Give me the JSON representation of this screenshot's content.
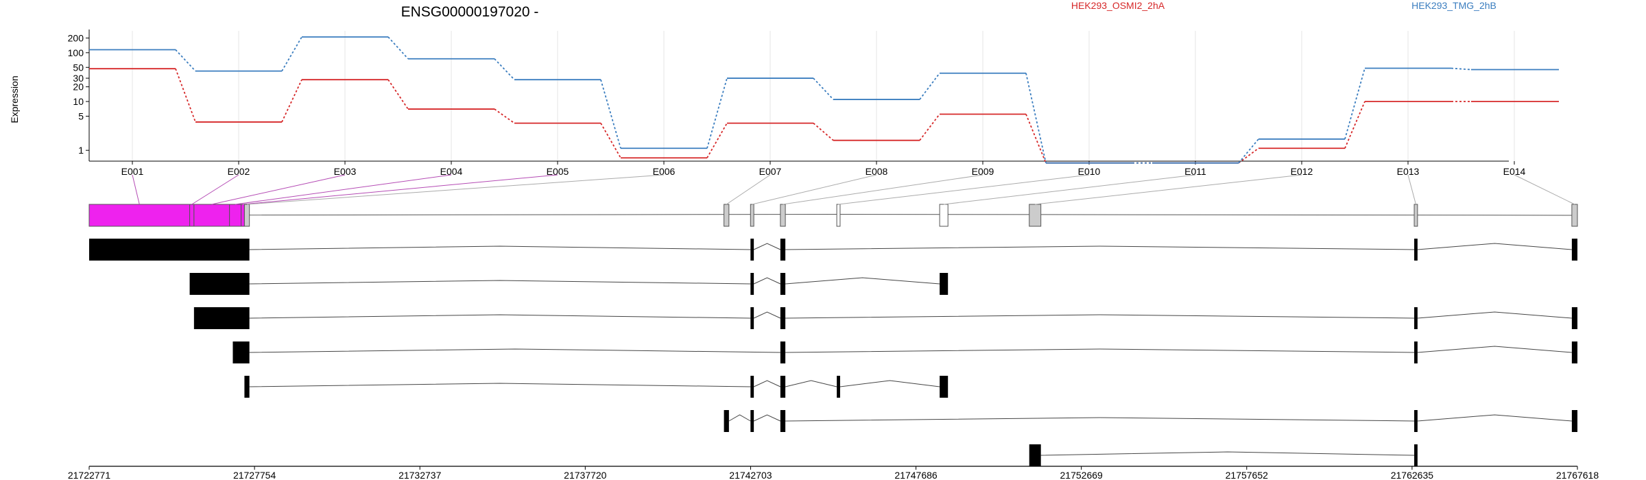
{
  "gene_title": "ENSG00000197020 -",
  "chart_data": {
    "type": "line",
    "title": "ENSG00000197020 -",
    "ylabel": "Expression",
    "xlabel": "",
    "y_scale": "log",
    "y_ticks": [
      1,
      5,
      10,
      20,
      30,
      50,
      100,
      200
    ],
    "ylim": [
      0.6,
      280
    ],
    "categories": [
      "E001",
      "E002",
      "E003",
      "E004",
      "E005",
      "E006",
      "E007",
      "E008",
      "E009",
      "E010",
      "E011",
      "E012",
      "E013",
      "E014"
    ],
    "series": [
      {
        "name": "HEK293_OSMI2_2hA",
        "color": "#d62728",
        "values": [
          47,
          3.8,
          28,
          7,
          3.6,
          0.7,
          3.6,
          1.6,
          5.5,
          0.55,
          0.55,
          1.1,
          10,
          10
        ]
      },
      {
        "name": "HEK293_TMG_2hB",
        "color": "#3a7dbf",
        "values": [
          115,
          42,
          210,
          75,
          28,
          1.1,
          30,
          11,
          38,
          0.55,
          0.55,
          1.7,
          48,
          45
        ]
      }
    ],
    "legend_position": "top",
    "grid": true,
    "genomic_axis": {
      "range": [
        21722771,
        21767618
      ],
      "tick_labels": [
        "21722771",
        "21727754",
        "21732737",
        "21737720",
        "21742703",
        "21747686",
        "21752669",
        "21757652",
        "21762635",
        "21767618"
      ]
    },
    "exons": [
      {
        "id": "E001",
        "start": 21722771,
        "end": 21725800,
        "fill": "#ee22ee"
      },
      {
        "id": "E002",
        "start": 21725800,
        "end": 21725930,
        "fill": "#ee22ee"
      },
      {
        "id": "E003",
        "start": 21725930,
        "end": 21727000,
        "fill": "#ee22ee"
      },
      {
        "id": "E004",
        "start": 21727000,
        "end": 21727350,
        "fill": "#ee22ee"
      },
      {
        "id": "E005",
        "start": 21727350,
        "end": 21727450,
        "fill": "#ee22ee"
      },
      {
        "id": "E006",
        "start": 21727450,
        "end": 21727600,
        "fill": "#cccccc"
      },
      {
        "id": "E007",
        "start": 21741900,
        "end": 21742050,
        "fill": "#cccccc"
      },
      {
        "id": "E008",
        "start": 21742700,
        "end": 21742800,
        "fill": "#cccccc"
      },
      {
        "id": "E009",
        "start": 21743600,
        "end": 21743750,
        "fill": "#cccccc"
      },
      {
        "id": "E010",
        "start": 21745300,
        "end": 21745400,
        "fill": "#ffffff"
      },
      {
        "id": "E011",
        "start": 21748400,
        "end": 21748650,
        "fill": "#ffffff"
      },
      {
        "id": "E012",
        "start": 21751100,
        "end": 21751450,
        "fill": "#cccccc"
      },
      {
        "id": "E013",
        "start": 21762700,
        "end": 21762800,
        "fill": "#cccccc"
      },
      {
        "id": "E014",
        "start": 21767450,
        "end": 21767618,
        "fill": "#cccccc"
      }
    ],
    "transcripts": [
      [
        [
          21722771,
          21727600
        ],
        [
          21742700,
          21742800
        ],
        [
          21743600,
          21743750
        ],
        [
          21762700,
          21762800
        ],
        [
          21767450,
          21767618
        ]
      ],
      [
        [
          21725800,
          21727600
        ],
        [
          21742700,
          21742800
        ],
        [
          21743600,
          21743750
        ],
        [
          21748400,
          21748650
        ]
      ],
      [
        [
          21725930,
          21727600
        ],
        [
          21742700,
          21742800
        ],
        [
          21743600,
          21743750
        ],
        [
          21762700,
          21762800
        ],
        [
          21767450,
          21767618
        ]
      ],
      [
        [
          21727100,
          21727600
        ],
        [
          21743600,
          21743750
        ],
        [
          21762700,
          21762800
        ],
        [
          21767450,
          21767618
        ]
      ],
      [
        [
          21727450,
          21727600
        ],
        [
          21742700,
          21742800
        ],
        [
          21743600,
          21743750
        ],
        [
          21745300,
          21745400
        ],
        [
          21748400,
          21748650
        ]
      ],
      [
        [
          21741900,
          21742050
        ],
        [
          21742700,
          21742800
        ],
        [
          21743600,
          21743750
        ],
        [
          21762700,
          21762800
        ],
        [
          21767450,
          21767618
        ]
      ],
      [
        [
          21751100,
          21751450
        ],
        [
          21762700,
          21762800
        ]
      ]
    ]
  }
}
